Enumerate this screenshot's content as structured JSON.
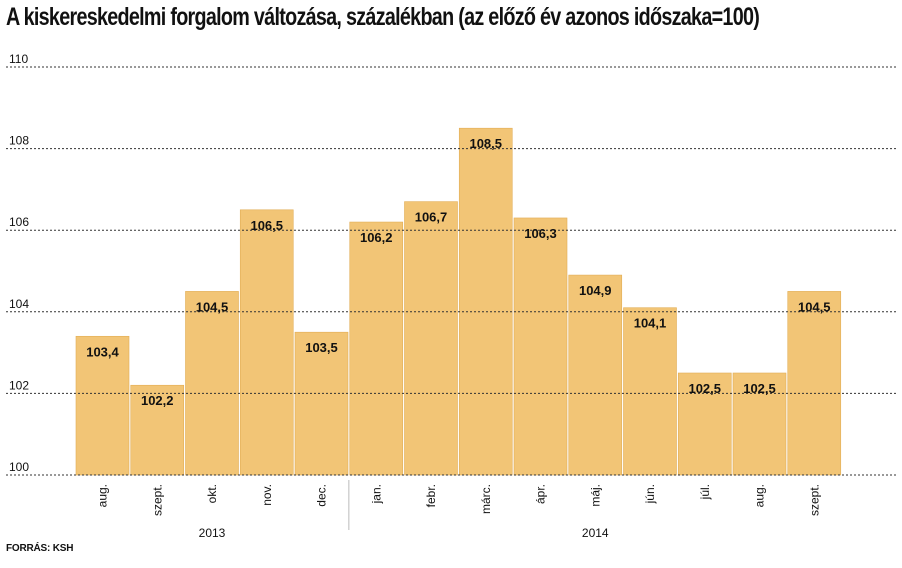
{
  "title": "A kiskereskedelmi forgalom változása, százalékban (az előző év azonos időszaka=100)",
  "source": "FORRÁS: KSH",
  "colors": {
    "bar": "#f2c576",
    "bar_stroke": "#e2ad55",
    "grid": "#333333",
    "text": "#111111"
  },
  "chart_data": {
    "type": "bar",
    "title": "A kiskereskedelmi forgalom változása, százalékban (az előző év azonos időszaka=100)",
    "categories": [
      "aug.",
      "szept.",
      "okt.",
      "nov.",
      "dec.",
      "jan.",
      "febr.",
      "márc.",
      "ápr.",
      "máj.",
      "jún.",
      "júl.",
      "aug.",
      "szept."
    ],
    "values": [
      103.4,
      102.2,
      104.5,
      106.5,
      103.5,
      106.2,
      106.7,
      108.5,
      106.3,
      104.9,
      104.1,
      102.5,
      102.5,
      104.5
    ],
    "value_labels": [
      "103,4",
      "102,2",
      "104,5",
      "106,5",
      "103,5",
      "106,2",
      "106,7",
      "108,5",
      "106,3",
      "104,9",
      "104,1",
      "102,5",
      "102,5",
      "104,5"
    ],
    "yticks": [
      "100",
      "102",
      "104",
      "106",
      "108",
      "110"
    ],
    "ylim": [
      100,
      110
    ],
    "grid": true,
    "grid_style": "dashed",
    "year_groups": [
      {
        "label": "2013",
        "from": 0,
        "to": 4
      },
      {
        "label": "2014",
        "from": 5,
        "to": 13
      }
    ]
  }
}
